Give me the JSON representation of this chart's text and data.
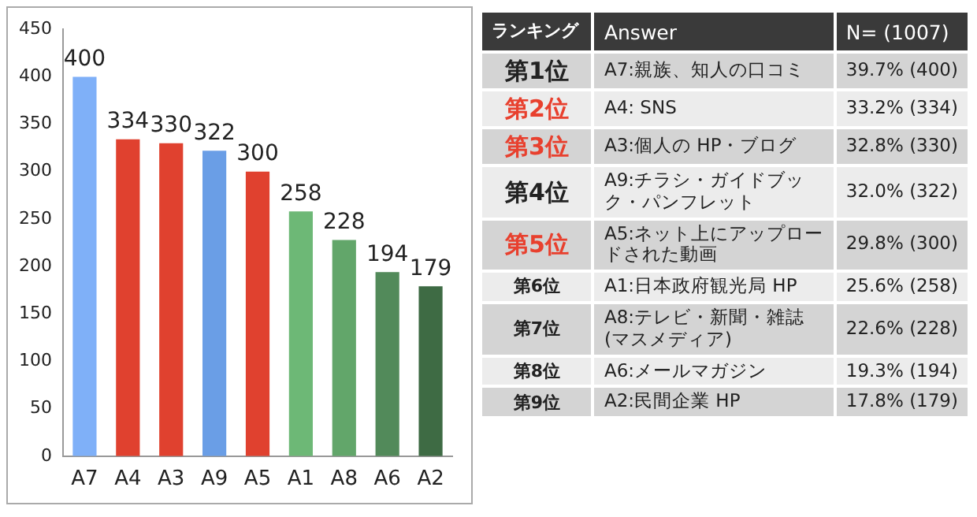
{
  "chart_data": [
    {
      "type": "bar",
      "categories": [
        "A7",
        "A4",
        "A3",
        "A9",
        "A5",
        "A1",
        "A8",
        "A6",
        "A2"
      ],
      "values": [
        400,
        334,
        330,
        322,
        300,
        258,
        228,
        194,
        179
      ],
      "colors": [
        "#7fb0f8",
        "#e0412f",
        "#e0412f",
        "#6a9ee6",
        "#e0412f",
        "#6db876",
        "#62a66a",
        "#528a5a",
        "#3e6b44"
      ],
      "ylim": [
        0,
        450
      ],
      "yticks": [
        0,
        50,
        100,
        150,
        200,
        250,
        300,
        350,
        400,
        450
      ],
      "grid": false,
      "legend": false,
      "data_labels": true
    },
    {
      "type": "other",
      "colors": [
        "#222222",
        "#e8402e",
        "#e8402e",
        "#222222",
        "#e8402e",
        "#222222",
        "#222222",
        "#222222",
        "#222222"
      ],
      "annotations": [
        "ランキング",
        "Answer",
        "N= (1007)",
        "第1位",
        "A7:親族、知人の口コミ",
        "39.7% (400)",
        "第2位",
        "A4: SNS",
        "33.2% (334)",
        "第3位",
        "A3:個人の HP・ブログ",
        "32.8% (330)",
        "第4位",
        "A9:チラシ・ガイドブック・パンフレット",
        "32.0% (322)",
        "第5位",
        "A5:ネット上にアップロードされた動画",
        "29.8% (300)",
        "第6位",
        "A1:日本政府観光局 HP",
        "25.6% (258)",
        "第7位",
        "A8:テレビ・新聞・雑誌 (マスメディア)",
        "22.6% (228)",
        "第8位",
        "A6:メールマガジン",
        "19.3% (194)",
        "第9位",
        "A2:民間企業 HP",
        "17.8% (179)"
      ]
    }
  ]
}
